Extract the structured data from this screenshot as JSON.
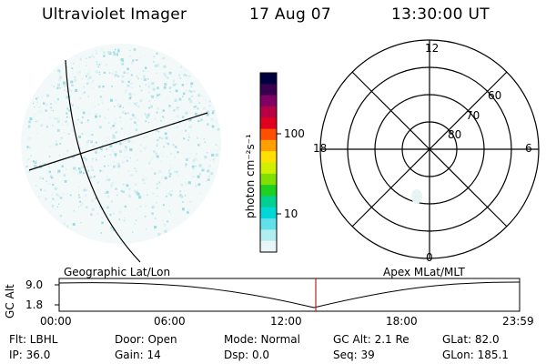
{
  "header": {
    "title": "Ultraviolet Imager",
    "date": "17 Aug 07",
    "time": "13:30:00 UT"
  },
  "colorbar": {
    "label": "photon cm⁻²s⁻¹",
    "ticks": [
      {
        "label": "100",
        "value": 100
      },
      {
        "label": "10",
        "value": 10
      }
    ],
    "scale": "log",
    "colors": [
      "#000040",
      "#3a0050",
      "#800066",
      "#b80044",
      "#e00020",
      "#ff5000",
      "#ffa000",
      "#ffe000",
      "#d0f000",
      "#80e000",
      "#20d020",
      "#00d090",
      "#00d8d8",
      "#60e0e8",
      "#b0eef0",
      "#e8f6f8"
    ]
  },
  "polar_plot": {
    "mlt_labels": {
      "top": "12",
      "left": "18",
      "right": "6",
      "bottom": "0"
    },
    "lat_labels": [
      "60",
      "70",
      "80"
    ],
    "lat_values": [
      60,
      70,
      80
    ]
  },
  "timeline": {
    "left_title": "Geographic Lat/Lon",
    "right_title": "Apex MLat/MLT",
    "y_axis_label": "GC Alt",
    "y_ticks": [
      "9.0",
      "1.8"
    ],
    "x_ticks": [
      "00:00",
      "06:00",
      "12:00",
      "18:00",
      "23:59"
    ],
    "current_time": "13:30",
    "marker_color": "#c02020"
  },
  "info": {
    "flt": "Flt: LBHL",
    "door": "Door: Open",
    "mode": "Mode: Normal",
    "gc_alt": "GC Alt: 2.1 Re",
    "glat": "GLat:  82.0",
    "ip": "IP: 36.0",
    "gain": "Gain: 14",
    "dsp": "Dsp:     0.0",
    "seq": "Seq: 39",
    "glon": "GLon: 185.1"
  }
}
